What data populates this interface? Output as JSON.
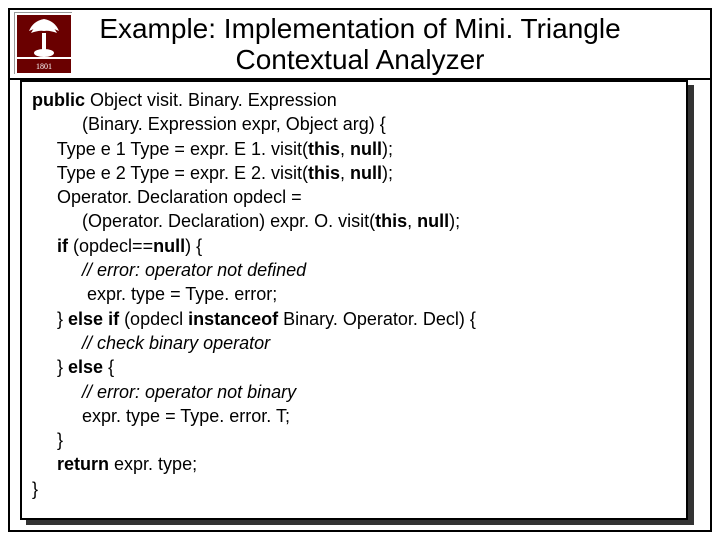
{
  "slide": {
    "title": "Example: Implementation of Mini. Triangle Contextual Analyzer",
    "logo_bg": "#ffffff",
    "logo_accent": "#6a0000",
    "code_lines": [
      {
        "indent": 0,
        "segments": [
          {
            "t": "public",
            "b": true
          },
          {
            "t": " Object visit. Binary. Expression"
          }
        ]
      },
      {
        "indent": 2,
        "segments": [
          {
            "t": "(Binary. Expression expr, Object arg) {"
          }
        ]
      },
      {
        "indent": 1,
        "segments": [
          {
            "t": "Type e 1 Type = expr. E 1. visit("
          },
          {
            "t": "this",
            "b": true
          },
          {
            "t": ", "
          },
          {
            "t": "null",
            "b": true
          },
          {
            "t": ");"
          }
        ]
      },
      {
        "indent": 1,
        "segments": [
          {
            "t": "Type e 2 Type = expr. E 2. visit("
          },
          {
            "t": "this",
            "b": true
          },
          {
            "t": ", "
          },
          {
            "t": "null",
            "b": true
          },
          {
            "t": ");"
          }
        ]
      },
      {
        "indent": 1,
        "segments": [
          {
            "t": "Operator. Declaration opdecl ="
          }
        ]
      },
      {
        "indent": 2,
        "segments": [
          {
            "t": "(Operator. Declaration) expr. O. visit("
          },
          {
            "t": "this",
            "b": true
          },
          {
            "t": ", "
          },
          {
            "t": "null",
            "b": true
          },
          {
            "t": ");"
          }
        ]
      },
      {
        "indent": 1,
        "segments": [
          {
            "t": "if",
            "b": true
          },
          {
            "t": " (opdecl=="
          },
          {
            "t": "null",
            "b": true
          },
          {
            "t": ") {"
          }
        ]
      },
      {
        "indent": 2,
        "segments": [
          {
            "t": "// error: operator not defined",
            "i": true
          }
        ]
      },
      {
        "indent": 2,
        "segments": [
          {
            "t": " expr. type = Type. error;"
          }
        ]
      },
      {
        "indent": 1,
        "segments": [
          {
            "t": "} "
          },
          {
            "t": "else if",
            "b": true
          },
          {
            "t": " (opdecl "
          },
          {
            "t": "instanceof",
            "b": true
          },
          {
            "t": " Binary. Operator. Decl) {"
          }
        ]
      },
      {
        "indent": 2,
        "segments": [
          {
            "t": "// check binary operator",
            "i": true
          }
        ]
      },
      {
        "indent": 1,
        "segments": [
          {
            "t": "} "
          },
          {
            "t": "else",
            "b": true
          },
          {
            "t": " {"
          }
        ]
      },
      {
        "indent": 2,
        "segments": [
          {
            "t": "// error: operator not binary",
            "i": true
          }
        ]
      },
      {
        "indent": 2,
        "segments": [
          {
            "t": "expr. type = Type. error. T;"
          }
        ]
      },
      {
        "indent": 1,
        "segments": [
          {
            "t": "}"
          }
        ]
      },
      {
        "indent": 1,
        "segments": [
          {
            "t": "return",
            "b": true
          },
          {
            "t": " expr. type;"
          }
        ]
      },
      {
        "indent": 0,
        "segments": [
          {
            "t": "}"
          }
        ]
      }
    ]
  }
}
